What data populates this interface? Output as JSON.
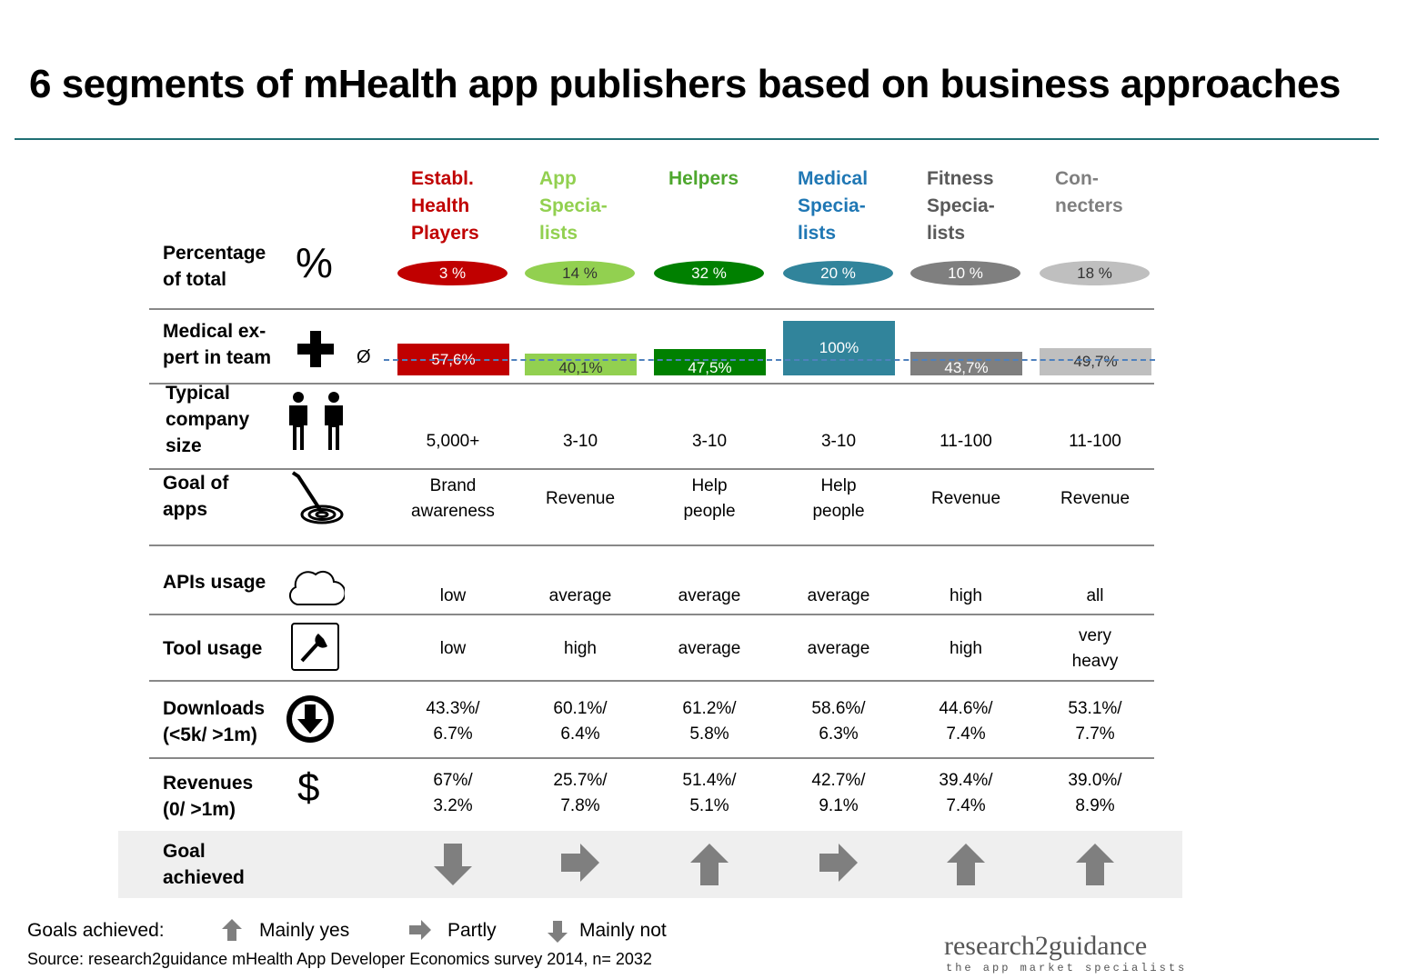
{
  "title": "6 segments of mHealth app publishers based on business approaches",
  "segments": [
    {
      "name": "Establ.\nHealth\nPlayers",
      "color": "#c00000",
      "share": "3 %",
      "share_text": "#ffffff",
      "medical": 57.6,
      "medical_label": "57,6%",
      "size": "5,000+",
      "goal": "Brand\nawareness",
      "apis": "low",
      "tools": "low",
      "downloads": "43.3%/\n6.7%",
      "revenues": "67%/\n3.2%",
      "achieved": "down"
    },
    {
      "name": "App\nSpecia-\nlists",
      "color": "#92d050",
      "share": "14 %",
      "share_text": "#333333",
      "medical": 40.1,
      "medical_label": "40,1%",
      "size": "3-10",
      "goal": "Revenue",
      "apis": "average",
      "tools": "high",
      "downloads": "60.1%/\n6.4%",
      "revenues": "25.7%/\n7.8%",
      "achieved": "right"
    },
    {
      "name": "Helpers",
      "color": "#008000",
      "share": "32 %",
      "share_text": "#ffffff",
      "medical": 47.5,
      "medical_label": "47,5%",
      "size": "3-10",
      "goal": "Help\npeople",
      "apis": "average",
      "tools": "average",
      "downloads": "61.2%/\n5.8%",
      "revenues": "51.4%/\n5.1%",
      "achieved": "up"
    },
    {
      "name": "Medical\nSpecia-\nlists",
      "color": "#31849b",
      "share": "20 %",
      "share_text": "#ffffff",
      "medical": 100,
      "medical_label": "100%",
      "size": "3-10",
      "goal": "Help\npeople",
      "apis": "average",
      "tools": "average",
      "downloads": "58.6%/\n6.3%",
      "revenues": "42.7%/\n9.1%",
      "achieved": "right"
    },
    {
      "name": "Fitness\nSpecia-\nlists",
      "color": "#7f7f7f",
      "share": "10 %",
      "share_text": "#ffffff",
      "medical": 43.7,
      "medical_label": "43,7%",
      "size": "11-100",
      "goal": "Revenue",
      "apis": "high",
      "tools": "high",
      "downloads": "44.6%/\n7.4%",
      "revenues": "39.4%/\n7.4%",
      "achieved": "up"
    },
    {
      "name": "Con-\nnecters",
      "color": "#bfbfbf",
      "share": "18 %",
      "share_text": "#333333",
      "medical": 49.7,
      "medical_label": "49,7%",
      "size": "11-100",
      "goal": "Revenue",
      "apis": "all",
      "tools": "very\nheavy",
      "downloads": "53.1%/\n7.7%",
      "revenues": "39.0%/\n8.9%",
      "achieved": "up"
    }
  ],
  "header_colors": [
    "#c00000",
    "#92d050",
    "#4ea72e",
    "#1f77b4",
    "#595959",
    "#7f7f7f"
  ],
  "rows": {
    "share": "Percentage\nof total",
    "share_symbol": "%",
    "medical": "Medical ex-\npert in team",
    "avg_symbol": "Ø",
    "size": "Typical\ncompany\nsize",
    "goal": "Goal of\napps",
    "apis": "APIs usage",
    "tools": "Tool usage",
    "downloads": "Downloads\n (<5k/ >1m)",
    "revenues": "Revenues\n(0/ >1m)",
    "revenues_symbol": "$",
    "achieved": "Goal\nachieved"
  },
  "legend": {
    "title": "Goals achieved:",
    "up": "Mainly yes",
    "right": "Partly",
    "down": "Mainly not"
  },
  "source": "Source: research2guidance mHealth App Developer Economics survey 2014, n= 2032",
  "logo": {
    "main": "research2guidance",
    "tagline": "the app market specialists"
  }
}
